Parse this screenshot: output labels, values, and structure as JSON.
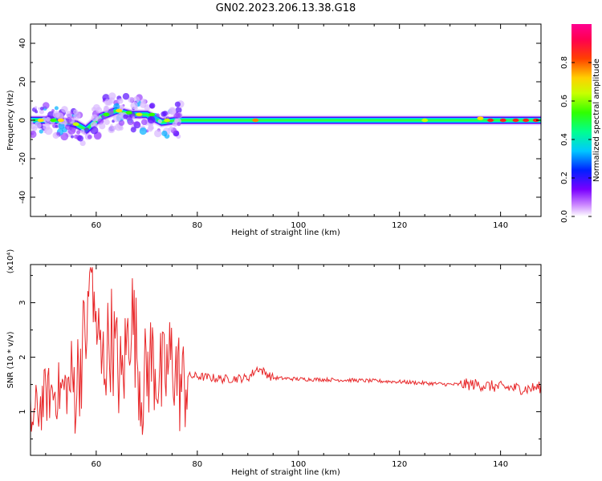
{
  "title": "GN02.2023.206.13.38.G18",
  "colors": {
    "snr_line": "#e8282a",
    "axis": "#000000",
    "background": "#ffffff"
  },
  "chart_data": [
    {
      "type": "heatmap",
      "xlabel": "Height of straight line (km)",
      "ylabel": "Frequency (Hz)",
      "xlim": [
        47,
        148
      ],
      "ylim": [
        -50,
        50
      ],
      "xticks": [
        60,
        80,
        100,
        120,
        140
      ],
      "yticks": [
        -40,
        -20,
        0,
        20,
        40
      ],
      "grid": false,
      "colorbar": {
        "label": "Normalized spectral amplitude",
        "range": [
          0,
          1
        ],
        "ticks": [
          "0.0",
          "0.2",
          "0.4",
          "0.6",
          "0.8"
        ],
        "colormap": "hsv-rainbow (white to purple to blue to cyan to green to yellow to red to magenta)"
      },
      "ridge": {
        "description": "narrow band of high amplitude centered near 0 Hz",
        "x": [
          48,
          52,
          56,
          58,
          61,
          64,
          67,
          70,
          73,
          76,
          80,
          90,
          100,
          110,
          120,
          130,
          135,
          140,
          145,
          148
        ],
        "y": [
          0,
          0,
          -2,
          -5,
          2,
          5,
          3,
          3,
          -1,
          0,
          0,
          0,
          0,
          0,
          0,
          0,
          0,
          0,
          0,
          0
        ]
      }
    },
    {
      "type": "line",
      "xlabel": "Height of straight line (km)",
      "ylabel": "SNR (10 * v/v)",
      "y_multiplier": "(x10⁴)",
      "xlim": [
        47,
        148
      ],
      "ylim": [
        0.2,
        3.7
      ],
      "xticks": [
        60,
        80,
        100,
        120,
        140
      ],
      "yticks": [
        1,
        2,
        3
      ],
      "grid": false,
      "series": [
        {
          "description": "highly oscillating SNR below ~78 km, smooth plateau near 1.6 above, slowly decaying to ~1.4 at 148 km",
          "x": [
            47,
            50,
            53,
            56,
            58,
            59,
            61,
            63,
            65,
            67,
            69,
            71,
            73,
            75,
            77,
            78,
            80,
            85,
            90,
            92,
            95,
            100,
            110,
            120,
            130,
            135,
            140,
            145,
            148
          ],
          "y": [
            0.8,
            1.3,
            1.4,
            1.5,
            2.5,
            3.6,
            1.8,
            2.4,
            1.5,
            2.9,
            1.4,
            2.0,
            1.5,
            2.0,
            1.4,
            1.65,
            1.65,
            1.6,
            1.62,
            1.8,
            1.62,
            1.6,
            1.58,
            1.55,
            1.5,
            1.5,
            1.45,
            1.42,
            1.45
          ]
        }
      ]
    }
  ]
}
